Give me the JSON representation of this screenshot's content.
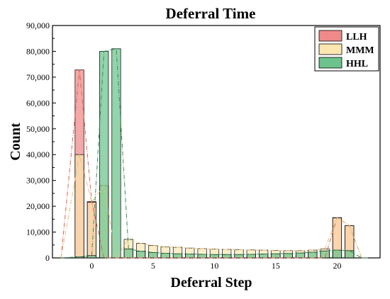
{
  "chart_data": {
    "type": "bar",
    "title": "Deferral Time",
    "xlabel": "Deferral Step",
    "ylabel": "Count",
    "xlim": [
      -3.2,
      23.5
    ],
    "ylim": [
      0,
      90000
    ],
    "x_ticks": [
      0,
      5,
      10,
      15,
      20
    ],
    "x_tick_labels": [
      "0",
      "5",
      "10",
      "15",
      "20"
    ],
    "y_ticks": [
      0,
      10000,
      20000,
      30000,
      40000,
      50000,
      60000,
      70000,
      80000,
      90000
    ],
    "y_tick_labels": [
      "0",
      "10,000",
      "20,000",
      "30,000",
      "40,000",
      "50,000",
      "60,000",
      "70,000",
      "80,000",
      "90,000"
    ],
    "legend_position": "top-right",
    "x": [
      -1,
      0,
      1,
      2,
      3,
      4,
      5,
      6,
      7,
      8,
      9,
      10,
      11,
      12,
      13,
      14,
      15,
      16,
      17,
      18,
      19,
      20,
      21,
      22
    ],
    "series": [
      {
        "name": "LLH",
        "color": "#f08a8a",
        "values": [
          72800,
          21800,
          0,
          0,
          0,
          0,
          0,
          0,
          0,
          0,
          0,
          0,
          0,
          0,
          0,
          0,
          0,
          0,
          0,
          0,
          0,
          15600,
          12500,
          0
        ]
      },
      {
        "name": "MMM",
        "color": "#fde7b0",
        "values": [
          40000,
          21500,
          28000,
          0,
          7200,
          5600,
          4800,
          4300,
          4100,
          3800,
          3600,
          3400,
          3300,
          3200,
          3100,
          3000,
          2900,
          2800,
          2800,
          3000,
          3500,
          15500,
          12500,
          0
        ]
      },
      {
        "name": "HHL",
        "color": "#6cc48c",
        "values": [
          400,
          900,
          80000,
          81000,
          3500,
          2600,
          2100,
          1800,
          1600,
          1500,
          1400,
          1300,
          1300,
          1300,
          1400,
          1500,
          1600,
          1700,
          1900,
          2200,
          2700,
          3000,
          2800,
          0
        ]
      }
    ]
  }
}
